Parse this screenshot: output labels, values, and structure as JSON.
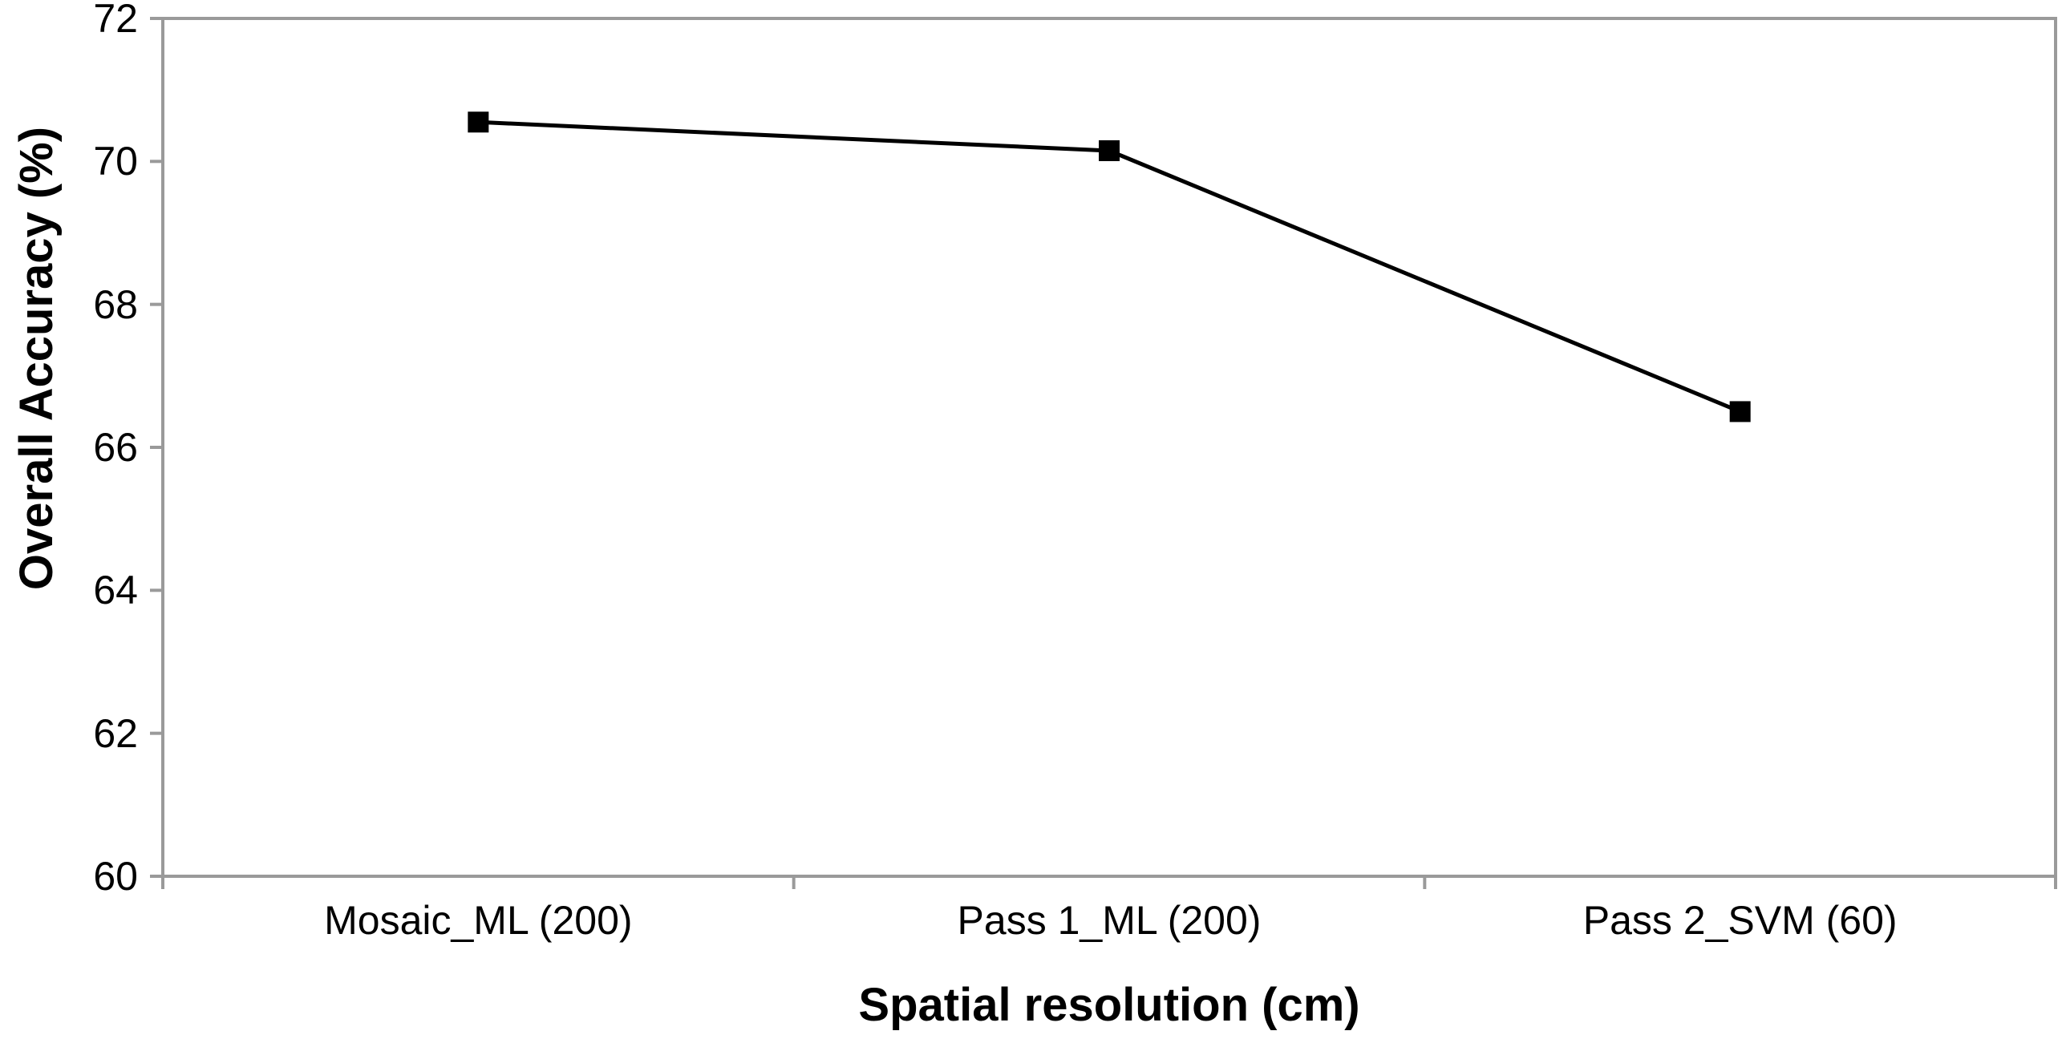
{
  "chart_data": {
    "type": "line",
    "title": "",
    "xlabel": "Spatial resolution (cm)",
    "ylabel": "Overall Accuracy (%)",
    "categories": [
      "Mosaic_ML (200)",
      "Pass 1_ML (200)",
      "Pass 2_SVM (60)"
    ],
    "series": [
      {
        "name": "Overall Accuracy (%)",
        "values": [
          70.55,
          70.15,
          66.5
        ]
      }
    ],
    "ylim": [
      60,
      72
    ],
    "yticks": [
      60,
      62,
      64,
      66,
      68,
      70,
      72
    ],
    "grid": false,
    "legend_position": "none",
    "marker": "filled-square",
    "colors": {
      "line": "#000000",
      "marker": "#000000",
      "axis": "#9a9a9a",
      "text": "#000000",
      "background": "#ffffff"
    }
  }
}
